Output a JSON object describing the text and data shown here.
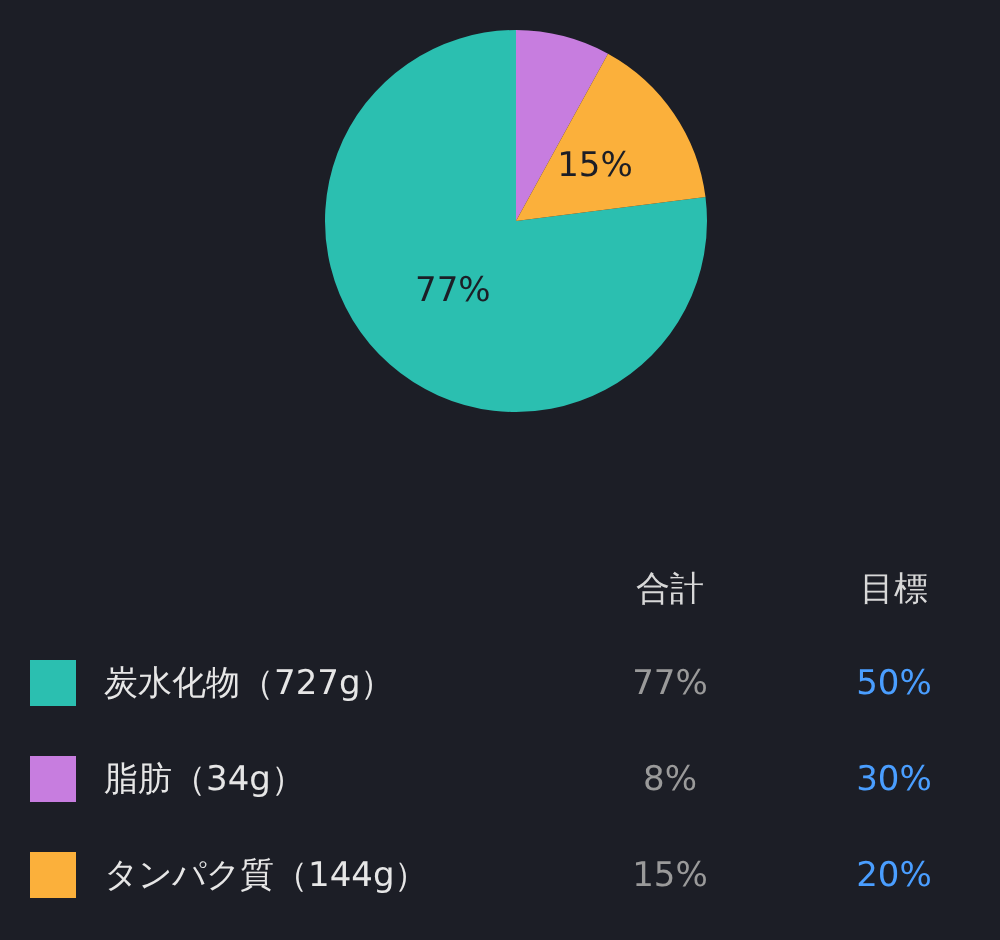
{
  "chart_data": {
    "type": "pie",
    "categories": [
      "炭水化物（727g）",
      "脂肪（34g）",
      "タンパク質（144g）"
    ],
    "values": [
      77,
      8,
      15
    ],
    "colors": [
      "#2bbfb0",
      "#c77ddf",
      "#fbb03b"
    ],
    "value_labels": [
      "77%",
      null,
      "15%"
    ],
    "legend": "bottom",
    "annotations": [
      "合計",
      "目標",
      "77%",
      "50%",
      "8%",
      "30%",
      "15%",
      "20%"
    ]
  }
}
